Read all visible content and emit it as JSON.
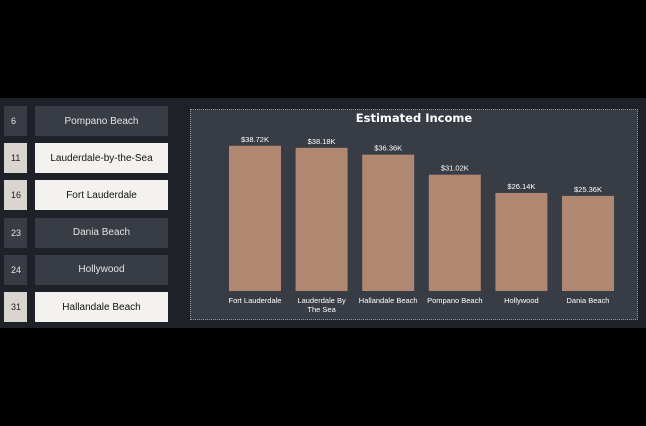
{
  "rank_list": [
    {
      "rank": "6",
      "name": "Pompano Beach",
      "selected": false
    },
    {
      "rank": "11",
      "name": "Lauderdale-by-the-Sea",
      "selected": true
    },
    {
      "rank": "16",
      "name": "Fort Lauderdale",
      "selected": true
    },
    {
      "rank": "23",
      "name": "Dania Beach",
      "selected": false
    },
    {
      "rank": "24",
      "name": "Hollywood",
      "selected": false
    },
    {
      "rank": "31",
      "name": "Hallandale Beach",
      "selected": true
    }
  ],
  "colors": {
    "bar": "#b08770",
    "panel": "#373c45",
    "label": "#ffffff"
  },
  "chart_data": {
    "type": "bar",
    "title": "Estimated Income",
    "categories": [
      [
        "Fort Lauderdale"
      ],
      [
        "Lauderdale By",
        "The Sea"
      ],
      [
        "Hallandale Beach"
      ],
      [
        "Pompano Beach"
      ],
      [
        "Hollywood"
      ],
      [
        "Dania Beach"
      ]
    ],
    "values": [
      38.72,
      38.18,
      36.36,
      31.02,
      26.14,
      25.36
    ],
    "data_labels": [
      "$38.72K",
      "$38.18K",
      "$36.36K",
      "$31.02K",
      "$26.14K",
      "$25.36K"
    ],
    "ylim": [
      0,
      40
    ],
    "grid": false,
    "legend": "none"
  }
}
